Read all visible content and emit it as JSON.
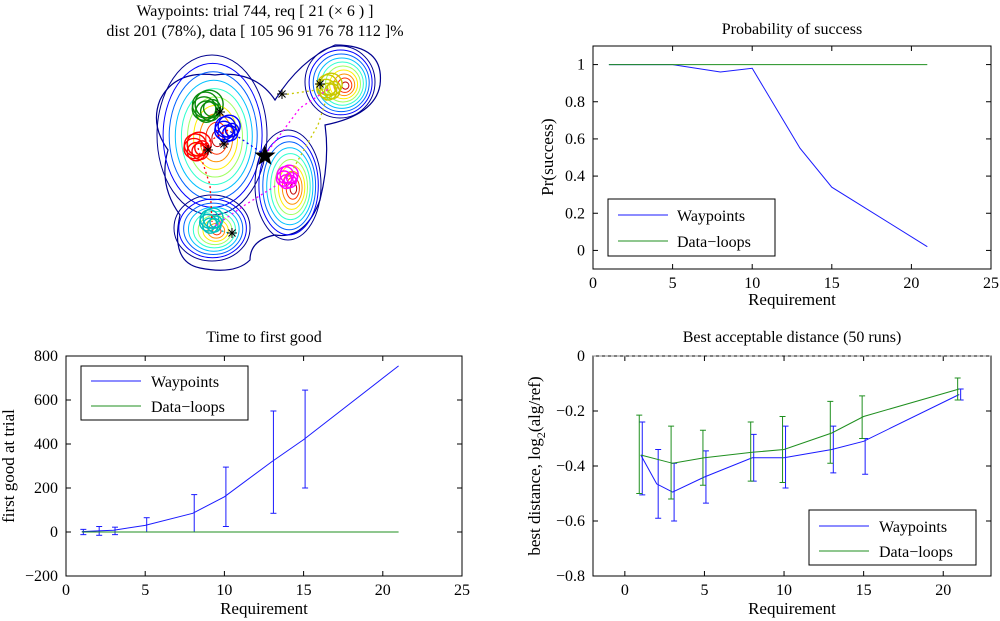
{
  "colors": {
    "waypoints": "#1a1aff",
    "dataloops": "#1f8f1f",
    "axis": "#000000"
  },
  "panel_map": {
    "title_line1": "Waypoints: trial 744, req [ 21 (× 6 ) ]",
    "title_line2": "dist 201 (78%), data [ 105 96 91 76 78 112 ]%"
  },
  "chart_data": [
    {
      "id": "prob",
      "type": "line",
      "title": "Probability of success",
      "xlabel": "Requirement",
      "ylabel": "Pr(success)",
      "xlim": [
        0,
        25
      ],
      "ylim": [
        -0.1,
        1.1
      ],
      "xticks": [
        0,
        5,
        10,
        15,
        20,
        25
      ],
      "yticks": [
        0,
        0.2,
        0.4,
        0.6,
        0.8,
        1
      ],
      "legend_position": "bottom-left",
      "series": [
        {
          "name": "Waypoints",
          "color": "#1a1aff",
          "x": [
            1,
            2,
            3,
            5,
            8,
            10,
            13,
            15,
            21
          ],
          "y": [
            1,
            1,
            1,
            1,
            0.96,
            0.98,
            0.55,
            0.34,
            0.02
          ]
        },
        {
          "name": "Data−loops",
          "color": "#1f8f1f",
          "x": [
            1,
            2,
            3,
            5,
            8,
            10,
            13,
            15,
            21
          ],
          "y": [
            1,
            1,
            1,
            1,
            1,
            1,
            1,
            1,
            1
          ]
        }
      ]
    },
    {
      "id": "time",
      "type": "line",
      "title": "Time to first good",
      "xlabel": "Requirement",
      "ylabel": "first good at trial",
      "xlim": [
        0,
        25
      ],
      "ylim": [
        -200,
        800
      ],
      "xticks": [
        0,
        5,
        10,
        15,
        20,
        25
      ],
      "yticks": [
        -200,
        0,
        200,
        400,
        600,
        800
      ],
      "legend_position": "top-left",
      "series": [
        {
          "name": "Waypoints",
          "color": "#1a1aff",
          "x": [
            1,
            2,
            3,
            5,
            8,
            10,
            13,
            15,
            21
          ],
          "y": [
            2,
            5,
            8,
            30,
            85,
            160,
            320,
            420,
            755
          ],
          "err_low": [
            -12,
            -15,
            -12,
            0,
            0,
            25,
            85,
            200,
            755
          ],
          "err_high": [
            12,
            25,
            22,
            65,
            170,
            295,
            550,
            645,
            755
          ]
        },
        {
          "name": "Data−loops",
          "color": "#1f8f1f",
          "x": [
            1,
            21
          ],
          "y": [
            0,
            0
          ]
        }
      ]
    },
    {
      "id": "dist",
      "type": "line",
      "title": "Best acceptable distance (50 runs)",
      "xlabel": "Requirement",
      "ylabel": "best distance, log",
      "ylabel_sub": "2",
      "ylabel_tail": "(alg/ref)",
      "xlim": [
        -2,
        23
      ],
      "ylim": [
        -0.8,
        0
      ],
      "xticks": [
        0,
        5,
        10,
        15,
        20
      ],
      "yticks": [
        -0.8,
        -0.6,
        -0.4,
        -0.2,
        0
      ],
      "reference_line": 0,
      "legend_position": "bottom-right",
      "series": [
        {
          "name": "Waypoints",
          "color": "#1a1aff",
          "x": [
            1,
            2,
            3,
            5,
            8,
            10,
            13,
            15,
            21
          ],
          "y": [
            -0.36,
            -0.465,
            -0.495,
            -0.44,
            -0.37,
            -0.37,
            -0.34,
            -0.31,
            -0.14
          ],
          "err_low": [
            -0.505,
            -0.59,
            -0.6,
            -0.535,
            -0.455,
            -0.48,
            -0.425,
            -0.43,
            -0.16
          ],
          "err_high": [
            -0.24,
            -0.34,
            -0.39,
            -0.345,
            -0.285,
            -0.255,
            -0.255,
            -0.3,
            -0.12
          ]
        },
        {
          "name": "Data−loops",
          "color": "#1f8f1f",
          "x": [
            1,
            3,
            5,
            8,
            10,
            13,
            15,
            21
          ],
          "y": [
            -0.36,
            -0.39,
            -0.37,
            -0.35,
            -0.34,
            -0.28,
            -0.22,
            -0.12
          ],
          "err_low": [
            -0.5,
            -0.52,
            -0.47,
            -0.455,
            -0.46,
            -0.39,
            -0.3,
            -0.16
          ],
          "err_high": [
            -0.215,
            -0.255,
            -0.27,
            -0.24,
            -0.22,
            -0.165,
            -0.145,
            -0.08
          ]
        }
      ]
    }
  ]
}
